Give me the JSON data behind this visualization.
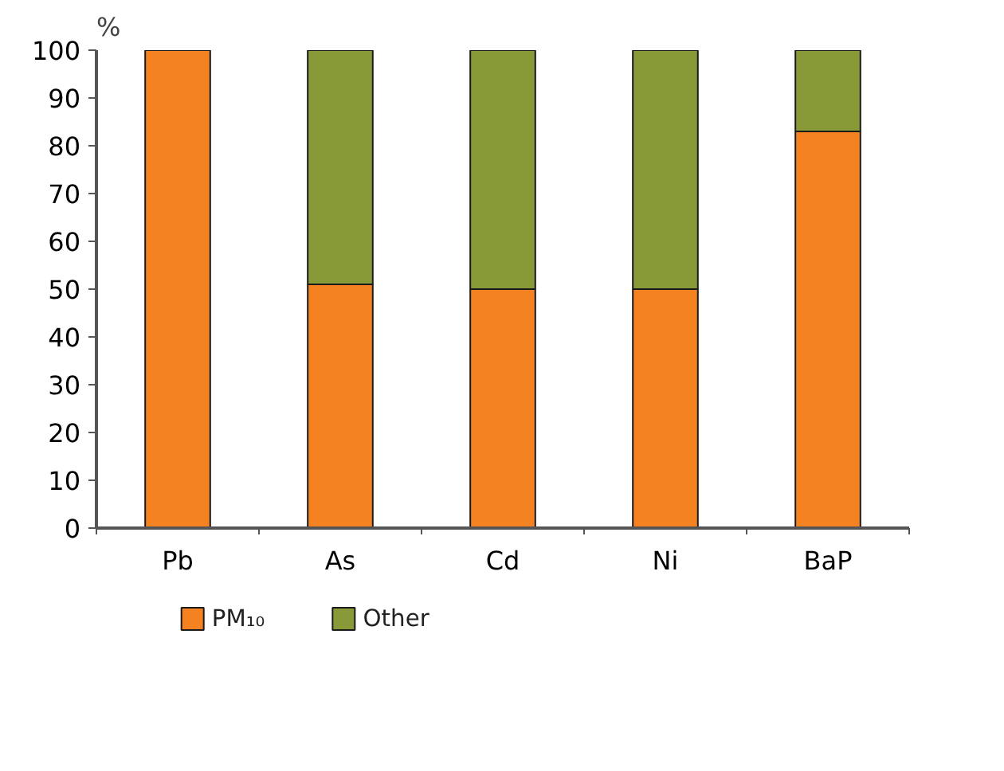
{
  "chart_data": {
    "type": "bar",
    "stacked": true,
    "ylabel": "%",
    "categories": [
      "Pb",
      "As",
      "Cd",
      "Ni",
      "BaP"
    ],
    "series": [
      {
        "name": "PM₁₀",
        "color": "#f58220",
        "values": [
          100,
          51,
          50,
          50,
          83
        ]
      },
      {
        "name": "Other",
        "color": "#879a37",
        "values": [
          0,
          49,
          50,
          50,
          17
        ]
      }
    ],
    "ylim": [
      0,
      100
    ],
    "yticks": [
      0,
      10,
      20,
      30,
      40,
      50,
      60,
      70,
      80,
      90,
      100
    ],
    "grid": false,
    "legend": "bottom"
  }
}
